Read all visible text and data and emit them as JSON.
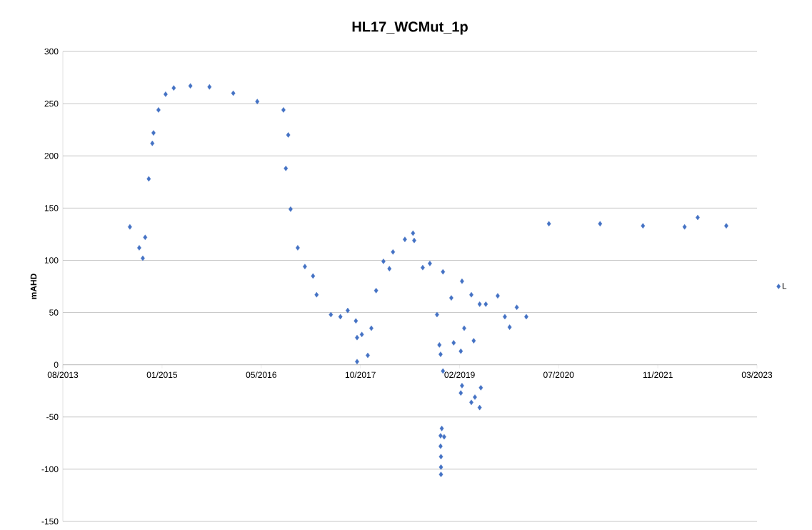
{
  "chart_data": {
    "type": "scatter",
    "title": "HL17_WCMut_1p",
    "ylabel": "mAHD",
    "series": [
      {
        "name": "L",
        "color": "#4472c4",
        "x": [
          "2014-08-04",
          "2014-09-20",
          "2014-10-08",
          "2014-10-20",
          "2014-11-07",
          "2014-11-25",
          "2014-12-01",
          "2014-12-26",
          "2015-01-31",
          "2015-03-13",
          "2015-06-05",
          "2015-09-09",
          "2016-01-07",
          "2016-05-07",
          "2016-09-16",
          "2016-09-28",
          "2016-10-10",
          "2016-10-22",
          "2016-11-27",
          "2017-01-02",
          "2017-02-12",
          "2017-03-02",
          "2017-05-13",
          "2017-06-30",
          "2017-08-06",
          "2017-09-16",
          "2017-09-22",
          "2017-09-22",
          "2017-10-16",
          "2017-11-15",
          "2017-12-03",
          "2017-12-27",
          "2018-02-02",
          "2018-03-04",
          "2018-03-22",
          "2018-05-21",
          "2018-07-01",
          "2018-07-07",
          "2018-08-19",
          "2018-09-24",
          "2018-10-30",
          "2018-11-11",
          "2018-11-17",
          "2018-11-29",
          "2018-11-29",
          "2018-11-23",
          "2018-11-17",
          "2018-12-05",
          "2018-11-17",
          "2018-11-19",
          "2018-11-19",
          "2018-11-19",
          "2019-01-10",
          "2019-01-22",
          "2019-03-05",
          "2019-02-27",
          "2019-03-05",
          "2019-02-27",
          "2019-03-16",
          "2019-04-21",
          "2019-05-03",
          "2019-06-08",
          "2019-04-21",
          "2019-05-09",
          "2019-06-02",
          "2019-06-02",
          "2019-07-03",
          "2019-09-01",
          "2019-10-07",
          "2019-10-31",
          "2019-12-06",
          "2020-01-23",
          "2020-05-16",
          "2021-01-29",
          "2021-09-02",
          "2022-03-31",
          "2022-06-05",
          "2022-10-27"
        ],
        "values": [
          132,
          112,
          102,
          122,
          178,
          212,
          222,
          244,
          259,
          265,
          267,
          266,
          260,
          252,
          244,
          188,
          220,
          149,
          112,
          94,
          85,
          67,
          48,
          46,
          52,
          42,
          3,
          26,
          29,
          9,
          35,
          71,
          99,
          92,
          108,
          120,
          126,
          119,
          93,
          97,
          48,
          19,
          10,
          89,
          -6,
          -61,
          -68,
          -69,
          -78,
          -88,
          -98,
          -105,
          64,
          21,
          80,
          13,
          -20,
          -27,
          35,
          67,
          23,
          -22,
          -36,
          -31,
          -41,
          58,
          58,
          66,
          46,
          36,
          55,
          46,
          135,
          135,
          133,
          132,
          141,
          133
        ]
      }
    ],
    "xlim": [
      "2013-08-31",
      "2023-03-31"
    ],
    "xticks": [
      {
        "value": "2013-08-31",
        "label": "08/2013"
      },
      {
        "value": "2015-01-13",
        "label": "01/2015"
      },
      {
        "value": "2016-05-27",
        "label": "05/2016"
      },
      {
        "value": "2017-10-09",
        "label": "10/2017"
      },
      {
        "value": "2019-02-21",
        "label": "02/2019"
      },
      {
        "value": "2020-07-04",
        "label": "07/2020"
      },
      {
        "value": "2021-11-16",
        "label": "11/2021"
      },
      {
        "value": "2023-03-31",
        "label": "03/2023"
      }
    ],
    "ylim": [
      -150,
      300
    ],
    "yticks": [
      -150,
      -100,
      -50,
      0,
      50,
      100,
      150,
      200,
      250,
      300
    ],
    "grid": "y",
    "legend": "right",
    "marker": "diamond"
  }
}
